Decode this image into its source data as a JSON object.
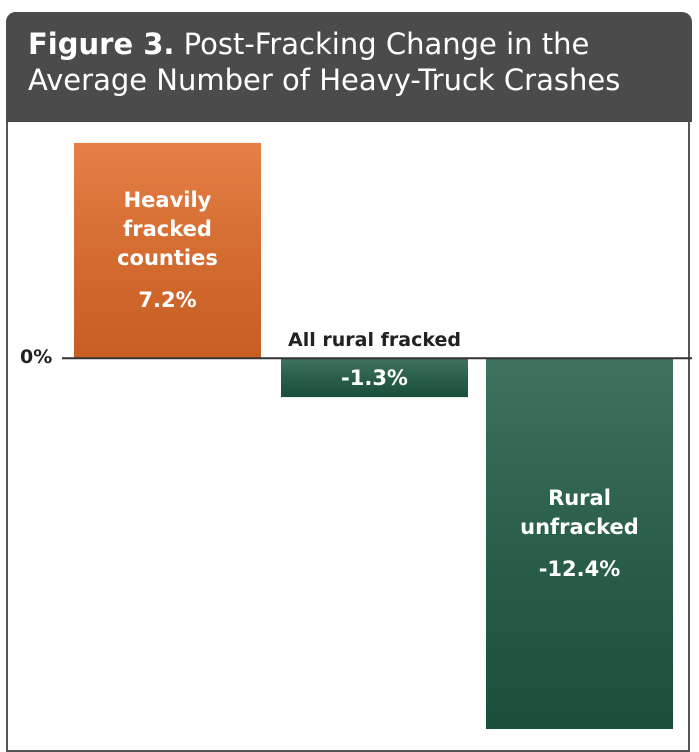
{
  "chart_data": {
    "type": "bar",
    "figure_label": "Figure 3.",
    "title": "Post-Fracking Change in the Average Number of Heavy-Truck Crashes",
    "categories": [
      "Heavily fracked counties",
      "All rural fracked",
      "Rural unfracked"
    ],
    "values": [
      7.2,
      -1.3,
      -12.4
    ],
    "value_labels": [
      "7.2%",
      "-1.3%",
      "-12.4%"
    ],
    "colors": [
      "#e26a26",
      "#1d5a42",
      "#1d5a42"
    ],
    "ylim": [
      -12.7,
      7.9
    ],
    "yticks": [
      {
        "value": 0,
        "label": "0%"
      }
    ],
    "grid": false
  }
}
